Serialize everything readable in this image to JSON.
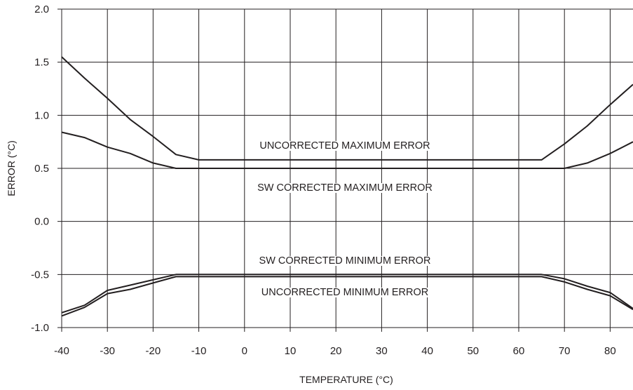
{
  "chart_data": {
    "type": "line",
    "xlabel": "TEMPERATURE (°C)",
    "ylabel": "ERROR (°C)",
    "xlim": [
      -40,
      85
    ],
    "ylim": [
      -1.0,
      2.0
    ],
    "x_ticks": [
      -40,
      -30,
      -20,
      -10,
      0,
      10,
      20,
      30,
      40,
      50,
      60,
      70,
      80
    ],
    "x_tick_labels": [
      "-40",
      "-30",
      "-20",
      "-10",
      "0",
      "10",
      "20",
      "30",
      "40",
      "50",
      "60",
      "70",
      "80"
    ],
    "y_ticks": [
      2.0,
      1.5,
      1.0,
      0.5,
      0.0,
      -0.5,
      -1.0
    ],
    "y_tick_labels": [
      "2.0",
      "1.5",
      "1.0",
      "0.5",
      "0.0",
      "-0.5",
      "-1.0"
    ],
    "grid": true,
    "series": [
      {
        "name": "UNCORRECTED MAXIMUM ERROR",
        "x": [
          -40,
          -35,
          -30,
          -25,
          -20,
          -15,
          -10,
          65,
          70,
          75,
          80,
          85
        ],
        "y": [
          1.55,
          1.35,
          1.16,
          0.96,
          0.8,
          0.63,
          0.58,
          0.58,
          0.73,
          0.9,
          1.1,
          1.29
        ]
      },
      {
        "name": "SW CORRECTED MAXIMUM ERROR",
        "x": [
          -40,
          -35,
          -30,
          -25,
          -20,
          -15,
          70,
          75,
          80,
          85
        ],
        "y": [
          0.84,
          0.79,
          0.7,
          0.64,
          0.55,
          0.5,
          0.5,
          0.55,
          0.64,
          0.75
        ]
      },
      {
        "name": "SW CORRECTED MINIMUM ERROR",
        "x": [
          -40,
          -35,
          -30,
          -25,
          -20,
          -15,
          65,
          70,
          75,
          80,
          85
        ],
        "y": [
          -0.86,
          -0.79,
          -0.65,
          -0.6,
          -0.55,
          -0.5,
          -0.5,
          -0.54,
          -0.61,
          -0.67,
          -0.82
        ]
      },
      {
        "name": "UNCORRECTED MINIMUM ERROR",
        "x": [
          -40,
          -35,
          -30,
          -25,
          -20,
          -15,
          65,
          70,
          75,
          80,
          85
        ],
        "y": [
          -0.89,
          -0.81,
          -0.68,
          -0.64,
          -0.58,
          -0.52,
          -0.52,
          -0.57,
          -0.64,
          -0.7,
          -0.83
        ]
      }
    ]
  }
}
